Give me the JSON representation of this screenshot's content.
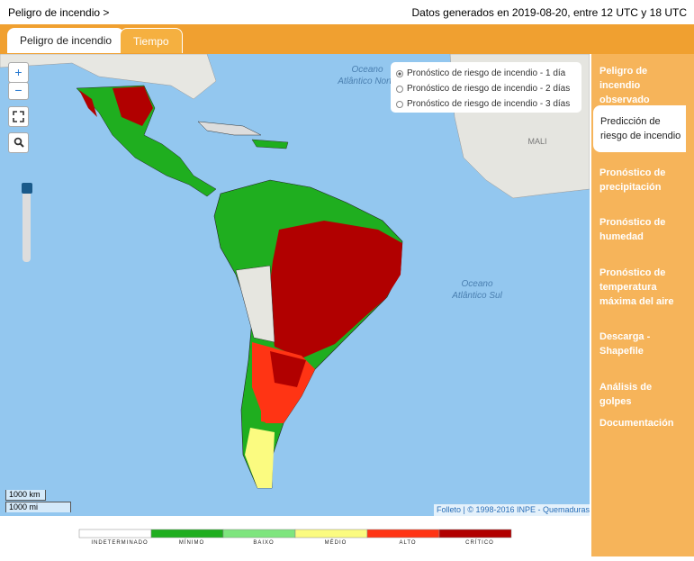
{
  "header": {
    "breadcrumb": "Peligro de incendio >",
    "status": "Datos generados en 2019-08-20, entre 12 UTC y 18 UTC"
  },
  "tabs": [
    "Peligro de incendio",
    "Tiempo"
  ],
  "map": {
    "zoom_in": "+",
    "zoom_out": "−",
    "forecast_options": [
      "Pronóstico de riesgo de incendio - 1 día",
      "Pronóstico de riesgo de incendio - 2 días",
      "Pronóstico de riesgo de incendio - 3 días"
    ],
    "ocean_north": [
      "Oceano",
      "Atlântico Norte"
    ],
    "ocean_south": [
      "Oceano",
      "Atlântico Sul"
    ],
    "country_label": "MALI",
    "scale": [
      "1000 km",
      "1000 mi"
    ],
    "attribution": "Folleto | © 1998-2016 INPE - Quemaduras"
  },
  "sidebar": [
    "Peligro de incendio observado",
    "Predicción de riesgo de incendio",
    "Pronóstico de precipitación",
    "Pronóstico de humedad",
    "Pronóstico de temperatura máxima del aire",
    "Descarga - Shapefile",
    "Análisis de golpes",
    "Documentación"
  ],
  "legend": [
    {
      "label": "INDETERMINADO",
      "color": "#ffffff"
    },
    {
      "label": "MÍNIMO",
      "color": "#1fae1f"
    },
    {
      "label": "BAIXO",
      "color": "#7ee57e"
    },
    {
      "label": "MÉDIO",
      "color": "#fbfb80"
    },
    {
      "label": "ALTO",
      "color": "#ff3414"
    },
    {
      "label": "CRÍTICO",
      "color": "#b10000"
    }
  ]
}
